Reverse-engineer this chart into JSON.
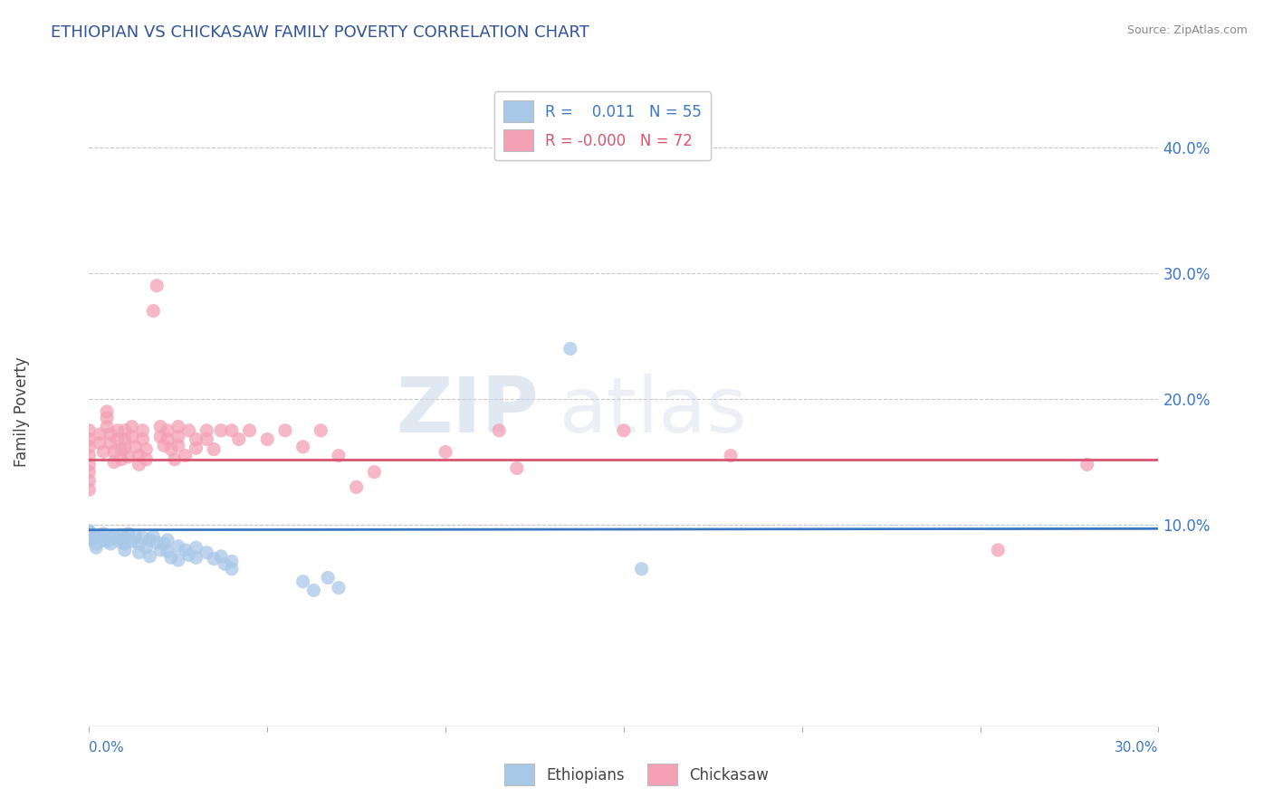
{
  "title": "ETHIOPIAN VS CHICKASAW FAMILY POVERTY CORRELATION CHART",
  "source": "Source: ZipAtlas.com",
  "ylabel": "Family Poverty",
  "xlim": [
    0.0,
    0.3
  ],
  "ylim": [
    -0.06,
    0.44
  ],
  "yticks": [
    0.1,
    0.2,
    0.3,
    0.4
  ],
  "xticks_positions": [
    0.0,
    0.05,
    0.1,
    0.15,
    0.2,
    0.25,
    0.3
  ],
  "ethiopian_color": "#a8c8e8",
  "chickasaw_color": "#f4a0b5",
  "ethiopian_line_color": "#3b78c3",
  "chickasaw_line_color": "#d9546e",
  "watermark_zip": "ZIP",
  "watermark_atlas": "atlas",
  "background_color": "#ffffff",
  "grid_color": "#c8c8d0",
  "ethiopian_trend_y0": 0.096,
  "ethiopian_trend_y1": 0.097,
  "chickasaw_trend_y": 0.152,
  "ethiopian_scatter": [
    [
      0.0,
      0.095
    ],
    [
      0.0,
      0.095
    ],
    [
      0.0,
      0.09
    ],
    [
      0.0,
      0.092
    ],
    [
      0.0,
      0.088
    ],
    [
      0.002,
      0.085
    ],
    [
      0.002,
      0.09
    ],
    [
      0.002,
      0.082
    ],
    [
      0.003,
      0.092
    ],
    [
      0.004,
      0.088
    ],
    [
      0.004,
      0.093
    ],
    [
      0.005,
      0.087
    ],
    [
      0.006,
      0.09
    ],
    [
      0.006,
      0.085
    ],
    [
      0.007,
      0.091
    ],
    [
      0.008,
      0.088
    ],
    [
      0.009,
      0.092
    ],
    [
      0.009,
      0.086
    ],
    [
      0.01,
      0.085
    ],
    [
      0.01,
      0.09
    ],
    [
      0.01,
      0.08
    ],
    [
      0.011,
      0.093
    ],
    [
      0.012,
      0.087
    ],
    [
      0.013,
      0.091
    ],
    [
      0.014,
      0.085
    ],
    [
      0.014,
      0.078
    ],
    [
      0.015,
      0.09
    ],
    [
      0.016,
      0.082
    ],
    [
      0.017,
      0.088
    ],
    [
      0.017,
      0.075
    ],
    [
      0.018,
      0.091
    ],
    [
      0.019,
      0.086
    ],
    [
      0.02,
      0.08
    ],
    [
      0.021,
      0.085
    ],
    [
      0.022,
      0.079
    ],
    [
      0.022,
      0.088
    ],
    [
      0.023,
      0.074
    ],
    [
      0.025,
      0.083
    ],
    [
      0.025,
      0.072
    ],
    [
      0.027,
      0.08
    ],
    [
      0.028,
      0.076
    ],
    [
      0.03,
      0.082
    ],
    [
      0.03,
      0.074
    ],
    [
      0.033,
      0.078
    ],
    [
      0.035,
      0.073
    ],
    [
      0.037,
      0.075
    ],
    [
      0.038,
      0.069
    ],
    [
      0.04,
      0.071
    ],
    [
      0.04,
      0.065
    ],
    [
      0.06,
      0.055
    ],
    [
      0.063,
      0.048
    ],
    [
      0.067,
      0.058
    ],
    [
      0.07,
      0.05
    ],
    [
      0.135,
      0.24
    ],
    [
      0.155,
      0.065
    ]
  ],
  "chickasaw_scatter": [
    [
      0.0,
      0.175
    ],
    [
      0.0,
      0.168
    ],
    [
      0.0,
      0.162
    ],
    [
      0.0,
      0.155
    ],
    [
      0.0,
      0.148
    ],
    [
      0.0,
      0.142
    ],
    [
      0.0,
      0.135
    ],
    [
      0.0,
      0.128
    ],
    [
      0.003,
      0.172
    ],
    [
      0.003,
      0.165
    ],
    [
      0.004,
      0.158
    ],
    [
      0.005,
      0.19
    ],
    [
      0.005,
      0.185
    ],
    [
      0.005,
      0.178
    ],
    [
      0.006,
      0.172
    ],
    [
      0.006,
      0.165
    ],
    [
      0.007,
      0.158
    ],
    [
      0.007,
      0.15
    ],
    [
      0.008,
      0.175
    ],
    [
      0.008,
      0.168
    ],
    [
      0.009,
      0.16
    ],
    [
      0.009,
      0.152
    ],
    [
      0.01,
      0.175
    ],
    [
      0.01,
      0.168
    ],
    [
      0.01,
      0.161
    ],
    [
      0.011,
      0.154
    ],
    [
      0.012,
      0.178
    ],
    [
      0.012,
      0.17
    ],
    [
      0.013,
      0.162
    ],
    [
      0.014,
      0.155
    ],
    [
      0.014,
      0.148
    ],
    [
      0.015,
      0.175
    ],
    [
      0.015,
      0.168
    ],
    [
      0.016,
      0.16
    ],
    [
      0.016,
      0.152
    ],
    [
      0.018,
      0.27
    ],
    [
      0.019,
      0.29
    ],
    [
      0.02,
      0.178
    ],
    [
      0.02,
      0.17
    ],
    [
      0.021,
      0.163
    ],
    [
      0.022,
      0.175
    ],
    [
      0.022,
      0.168
    ],
    [
      0.023,
      0.16
    ],
    [
      0.024,
      0.152
    ],
    [
      0.025,
      0.178
    ],
    [
      0.025,
      0.17
    ],
    [
      0.025,
      0.163
    ],
    [
      0.027,
      0.155
    ],
    [
      0.028,
      0.175
    ],
    [
      0.03,
      0.168
    ],
    [
      0.03,
      0.161
    ],
    [
      0.033,
      0.175
    ],
    [
      0.033,
      0.168
    ],
    [
      0.035,
      0.16
    ],
    [
      0.037,
      0.175
    ],
    [
      0.04,
      0.175
    ],
    [
      0.042,
      0.168
    ],
    [
      0.045,
      0.175
    ],
    [
      0.05,
      0.168
    ],
    [
      0.055,
      0.175
    ],
    [
      0.06,
      0.162
    ],
    [
      0.065,
      0.175
    ],
    [
      0.07,
      0.155
    ],
    [
      0.075,
      0.13
    ],
    [
      0.08,
      0.142
    ],
    [
      0.1,
      0.158
    ],
    [
      0.115,
      0.175
    ],
    [
      0.12,
      0.145
    ],
    [
      0.15,
      0.175
    ],
    [
      0.18,
      0.155
    ],
    [
      0.255,
      0.08
    ],
    [
      0.28,
      0.148
    ]
  ]
}
